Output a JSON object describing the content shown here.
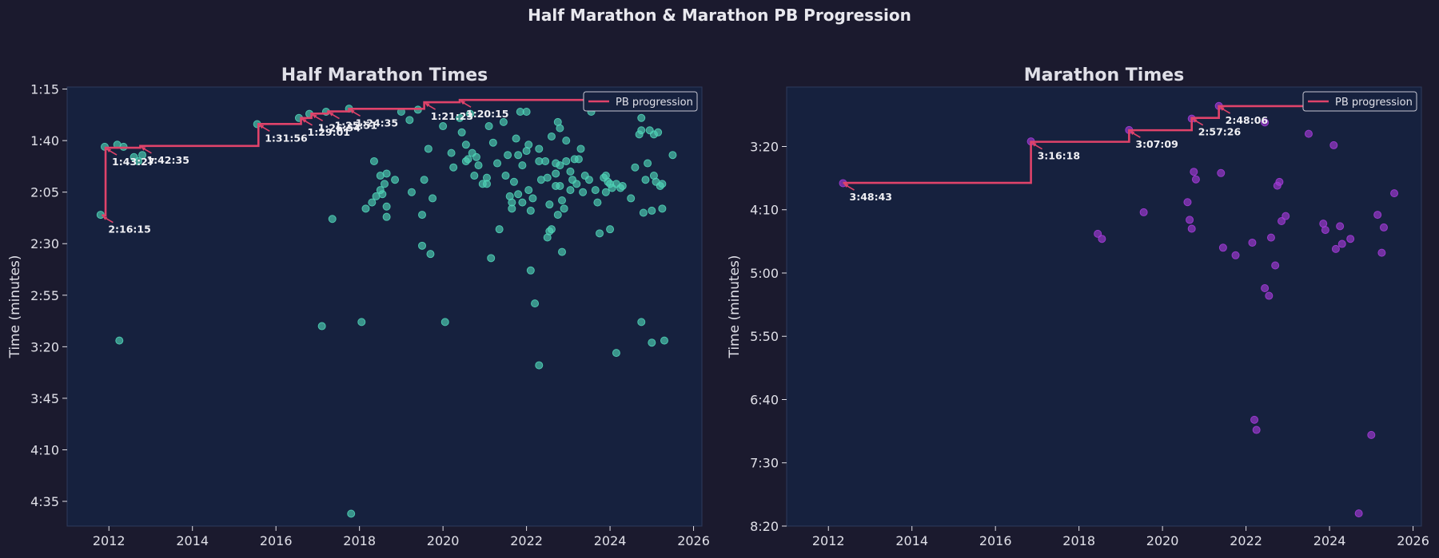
{
  "figure": {
    "title": "Half Marathon & Marathon PB Progression"
  },
  "legend_label": "PB progression",
  "colors": {
    "figure_bg": "#1b1a2e",
    "plot_bg": "#16213e",
    "half_points": "#4fd1b5",
    "marathon_points": "#a23bd6",
    "pb_line": "#e0436a",
    "text": "#e0e0e8"
  },
  "chart_data": [
    {
      "type": "scatter",
      "title": "Half Marathon Times",
      "xlabel": "",
      "ylabel": "Time (minutes)",
      "x_ticks": [
        "2012",
        "2014",
        "2016",
        "2018",
        "2020",
        "2022",
        "2024",
        "2026"
      ],
      "y_ticks": [
        "1:15",
        "1:40",
        "2:05",
        "2:30",
        "2:55",
        "3:20",
        "3:45",
        "4:10",
        "4:35"
      ],
      "y_tick_values": [
        75,
        100,
        125,
        150,
        175,
        200,
        225,
        250,
        275
      ],
      "xlim": [
        2011.0,
        2026.2
      ],
      "ylim": [
        287,
        74
      ],
      "y_inverted": true,
      "grid": false,
      "legend": "top-right",
      "series": [
        {
          "name": "PB progression",
          "kind": "step-line",
          "points": [
            [
              2011.83,
              136.25,
              "2:16:15"
            ],
            [
              2011.92,
              103.45,
              "1:43:27"
            ],
            [
              2012.75,
              102.58,
              "1:42:35"
            ],
            [
              2015.58,
              91.93,
              "1:31:56"
            ],
            [
              2016.6,
              89.02,
              "1:29:01"
            ],
            [
              2016.85,
              86.9,
              "1:26:54"
            ],
            [
              2017.25,
              85.85,
              "1:25:51"
            ],
            [
              2017.75,
              84.58,
              "1:24:35"
            ],
            [
              2019.55,
              81.38,
              "1:21:23"
            ],
            [
              2020.4,
              80.25,
              "1:20:15"
            ]
          ],
          "extend_to": 2025.6
        },
        {
          "name": "",
          "kind": "scatter",
          "points": [
            [
              2011.8,
              136
            ],
            [
              2011.9,
              103
            ],
            [
              2012.2,
              102
            ],
            [
              2012.35,
              103
            ],
            [
              2012.6,
              108
            ],
            [
              2012.8,
              107
            ],
            [
              2012.7,
              110
            ],
            [
              2012.25,
              197
            ],
            [
              2015.55,
              92
            ],
            [
              2016.55,
              89
            ],
            [
              2016.8,
              87
            ],
            [
              2017.2,
              86
            ],
            [
              2017.75,
              84.5
            ],
            [
              2017.1,
              190
            ],
            [
              2017.35,
              138
            ],
            [
              2018.05,
              188
            ],
            [
              2018.15,
              133
            ],
            [
              2018.3,
              130
            ],
            [
              2018.4,
              127
            ],
            [
              2018.5,
              124
            ],
            [
              2018.6,
              121
            ],
            [
              2018.65,
              116
            ],
            [
              2018.5,
              117
            ],
            [
              2018.35,
              110
            ],
            [
              2018.55,
              126
            ],
            [
              2018.65,
              132
            ],
            [
              2018.65,
              137
            ],
            [
              2018.85,
              119
            ],
            [
              2019.0,
              86
            ],
            [
              2019.2,
              90
            ],
            [
              2019.25,
              125
            ],
            [
              2019.5,
              136
            ],
            [
              2019.55,
              119
            ],
            [
              2019.4,
              85
            ],
            [
              2019.5,
              151
            ],
            [
              2019.65,
              104
            ],
            [
              2019.7,
              155
            ],
            [
              2019.75,
              128
            ],
            [
              2020.05,
              188
            ],
            [
              2020.0,
              93
            ],
            [
              2020.2,
              106
            ],
            [
              2020.25,
              113
            ],
            [
              2020.4,
              89
            ],
            [
              2020.45,
              96
            ],
            [
              2020.55,
              102
            ],
            [
              2020.55,
              110
            ],
            [
              2020.6,
              109
            ],
            [
              2020.7,
              106
            ],
            [
              2020.65,
              87
            ],
            [
              2020.8,
              108
            ],
            [
              2020.75,
              117
            ],
            [
              2020.85,
              112
            ],
            [
              2020.95,
              121
            ],
            [
              2021.05,
              118
            ],
            [
              2021.05,
              121
            ],
            [
              2021.1,
              93
            ],
            [
              2021.15,
              157
            ],
            [
              2021.2,
              101
            ],
            [
              2021.3,
              111
            ],
            [
              2021.35,
              143
            ],
            [
              2021.45,
              91
            ],
            [
              2021.5,
              117
            ],
            [
              2021.55,
              107
            ],
            [
              2021.6,
              127
            ],
            [
              2021.65,
              133
            ],
            [
              2021.65,
              130
            ],
            [
              2021.7,
              120
            ],
            [
              2021.75,
              99
            ],
            [
              2021.8,
              107
            ],
            [
              2021.8,
              126
            ],
            [
              2021.85,
              86
            ],
            [
              2021.9,
              130
            ],
            [
              2021.9,
              112
            ],
            [
              2022.0,
              86
            ],
            [
              2022.0,
              105
            ],
            [
              2022.05,
              102
            ],
            [
              2022.05,
              124
            ],
            [
              2022.1,
              134
            ],
            [
              2022.15,
              128
            ],
            [
              2022.1,
              163
            ],
            [
              2022.2,
              179
            ],
            [
              2022.3,
              110
            ],
            [
              2022.3,
              104
            ],
            [
              2022.3,
              209
            ],
            [
              2022.35,
              119
            ],
            [
              2022.45,
              110
            ],
            [
              2022.5,
              118
            ],
            [
              2022.5,
              147
            ],
            [
              2022.55,
              131
            ],
            [
              2022.55,
              144
            ],
            [
              2022.6,
              143
            ],
            [
              2022.6,
              98
            ],
            [
              2022.7,
              111
            ],
            [
              2022.7,
              122
            ],
            [
              2022.7,
              116
            ],
            [
              2022.75,
              136
            ],
            [
              2022.75,
              91
            ],
            [
              2022.8,
              122
            ],
            [
              2022.8,
              94
            ],
            [
              2022.8,
              112
            ],
            [
              2022.85,
              129
            ],
            [
              2022.85,
              154
            ],
            [
              2022.9,
              133
            ],
            [
              2022.95,
              110
            ],
            [
              2022.95,
              100
            ],
            [
              2023.05,
              124
            ],
            [
              2023.05,
              115
            ],
            [
              2023.1,
              119
            ],
            [
              2023.15,
              109
            ],
            [
              2023.2,
              121
            ],
            [
              2023.25,
              109
            ],
            [
              2023.3,
              104
            ],
            [
              2023.35,
              125
            ],
            [
              2023.4,
              117
            ],
            [
              2023.5,
              119
            ],
            [
              2023.55,
              86
            ],
            [
              2023.6,
              84
            ],
            [
              2023.65,
              124
            ],
            [
              2023.7,
              130
            ],
            [
              2023.75,
              145
            ],
            [
              2023.85,
              118
            ],
            [
              2023.9,
              125
            ],
            [
              2023.9,
              117
            ],
            [
              2023.95,
              120
            ],
            [
              2024.0,
              121
            ],
            [
              2024.0,
              143
            ],
            [
              2024.05,
              123
            ],
            [
              2024.15,
              121
            ],
            [
              2024.15,
              203
            ],
            [
              2024.25,
              123
            ],
            [
              2024.3,
              122
            ],
            [
              2024.5,
              128
            ],
            [
              2024.6,
              113
            ],
            [
              2024.7,
              97
            ],
            [
              2024.75,
              89
            ],
            [
              2024.75,
              95
            ],
            [
              2024.8,
              135
            ],
            [
              2024.75,
              188
            ],
            [
              2024.85,
              119
            ],
            [
              2024.9,
              111
            ],
            [
              2024.95,
              95
            ],
            [
              2025.05,
              97
            ],
            [
              2025.05,
              117
            ],
            [
              2025.0,
              134
            ],
            [
              2025.0,
              198
            ],
            [
              2025.1,
              120
            ],
            [
              2025.15,
              96
            ],
            [
              2025.2,
              122
            ],
            [
              2025.25,
              133
            ],
            [
              2025.25,
              121
            ],
            [
              2025.3,
              197
            ],
            [
              2025.5,
              107
            ],
            [
              2017.8,
              281
            ]
          ]
        }
      ]
    },
    {
      "type": "scatter",
      "title": "Marathon Times",
      "xlabel": "",
      "ylabel": "Time (minutes)",
      "x_ticks": [
        "2012",
        "2014",
        "2016",
        "2018",
        "2020",
        "2022",
        "2024",
        "2026"
      ],
      "y_ticks": [
        "3:20",
        "4:10",
        "5:00",
        "5:50",
        "6:40",
        "7:30",
        "8:20"
      ],
      "y_tick_values": [
        200,
        250,
        300,
        350,
        400,
        450,
        500
      ],
      "xlim": [
        2011.0,
        2026.2
      ],
      "ylim": [
        500,
        153
      ],
      "y_inverted": true,
      "grid": false,
      "legend": "top-right",
      "series": [
        {
          "name": "PB progression",
          "kind": "step-line",
          "points": [
            [
              2012.35,
              228.72,
              "3:48:43"
            ],
            [
              2016.85,
              196.3,
              "3:16:18"
            ],
            [
              2019.2,
              187.15,
              "3:07:09"
            ],
            [
              2020.7,
              177.43,
              "2:57:26"
            ],
            [
              2021.35,
              168.1,
              "2:48:06"
            ]
          ],
          "extend_to": 2025.6
        },
        {
          "name": "",
          "kind": "scatter",
          "points": [
            [
              2012.35,
              229
            ],
            [
              2016.85,
              196
            ],
            [
              2019.2,
              187
            ],
            [
              2020.7,
              178
            ],
            [
              2021.35,
              168
            ],
            [
              2018.45,
              269
            ],
            [
              2018.55,
              273
            ],
            [
              2019.55,
              252
            ],
            [
              2020.6,
              244
            ],
            [
              2020.65,
              258
            ],
            [
              2020.75,
              220
            ],
            [
              2020.8,
              226
            ],
            [
              2020.7,
              265
            ],
            [
              2021.4,
              221
            ],
            [
              2021.45,
              280
            ],
            [
              2021.75,
              286
            ],
            [
              2022.15,
              276
            ],
            [
              2022.45,
              312
            ],
            [
              2022.55,
              318
            ],
            [
              2022.6,
              272
            ],
            [
              2022.7,
              294
            ],
            [
              2022.75,
              231
            ],
            [
              2022.8,
              228
            ],
            [
              2022.85,
              259
            ],
            [
              2022.95,
              255
            ],
            [
              2022.2,
              416
            ],
            [
              2022.25,
              424
            ],
            [
              2022.45,
              181
            ],
            [
              2023.5,
              190
            ],
            [
              2023.85,
              261
            ],
            [
              2023.9,
              266
            ],
            [
              2024.1,
              199
            ],
            [
              2024.15,
              281
            ],
            [
              2024.25,
              263
            ],
            [
              2024.3,
              277
            ],
            [
              2024.5,
              273
            ],
            [
              2024.7,
              490
            ],
            [
              2025.0,
              428
            ],
            [
              2025.15,
              254
            ],
            [
              2025.25,
              284
            ],
            [
              2025.3,
              264
            ],
            [
              2025.55,
              237
            ]
          ]
        }
      ]
    }
  ]
}
